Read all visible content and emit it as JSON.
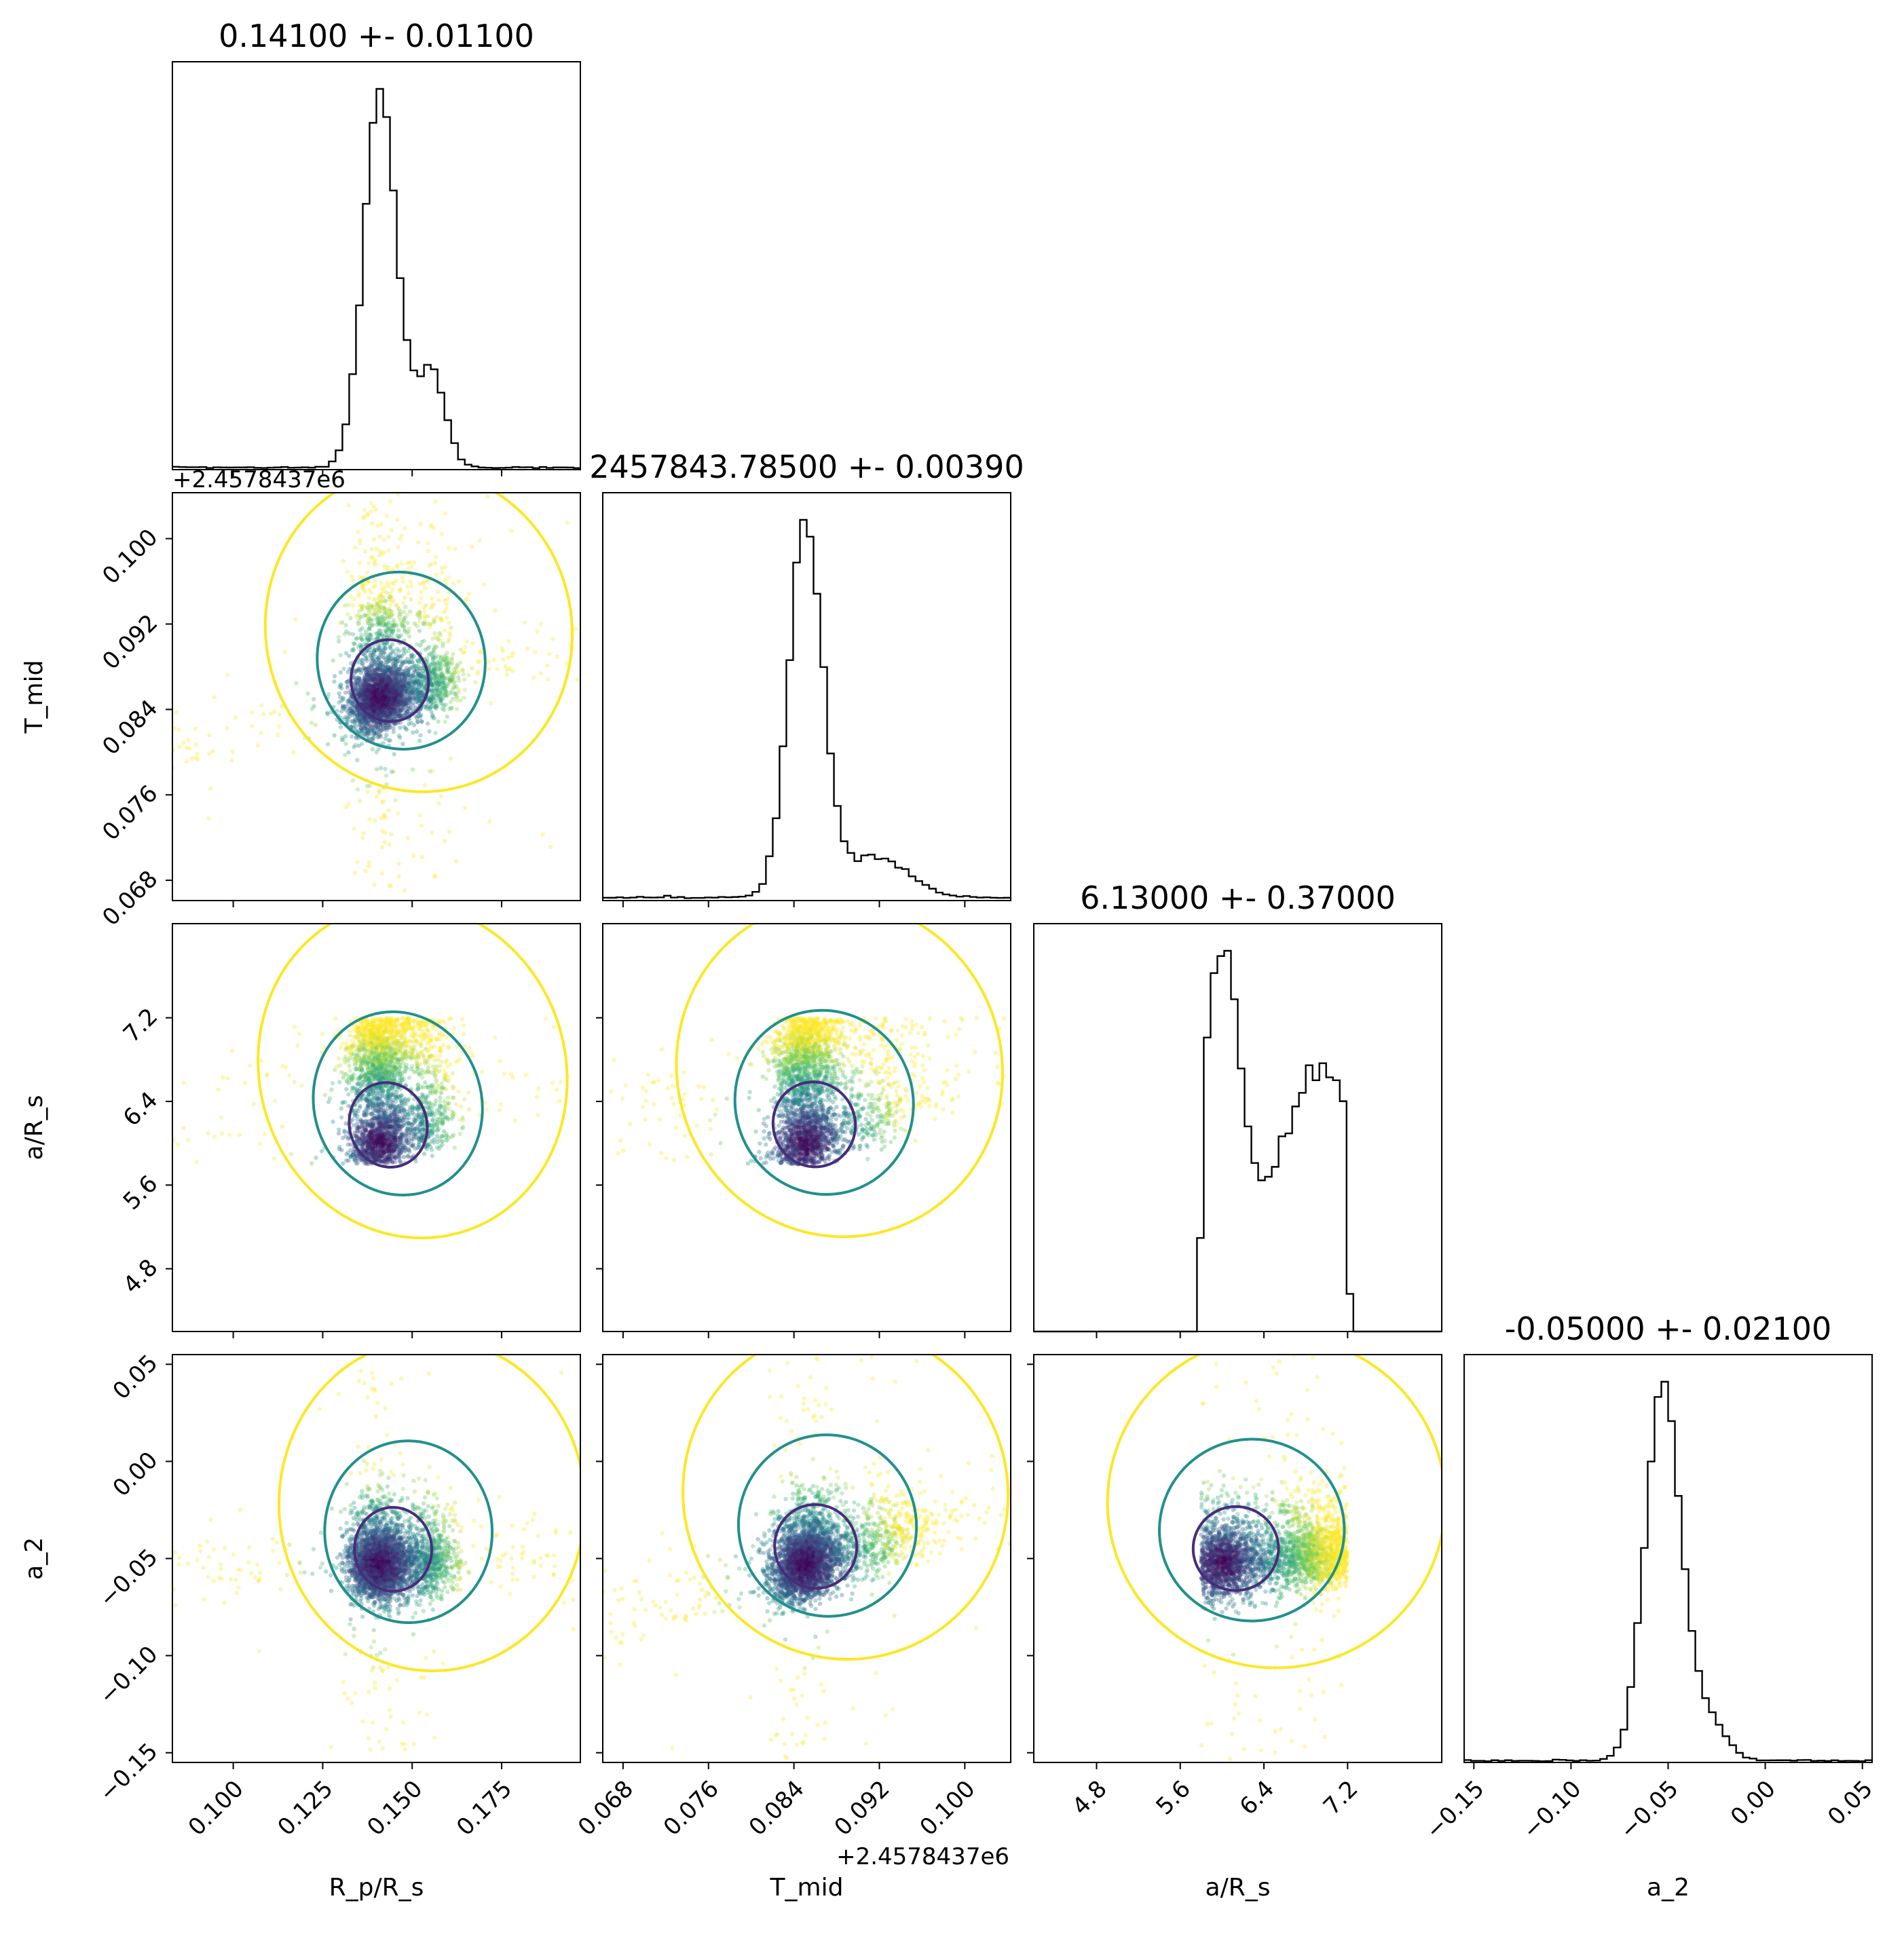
{
  "chart_data": {
    "type": "corner",
    "variables": [
      {
        "key": "rp",
        "label": "R_p/R_s",
        "title": "0.14100 +- 0.01100",
        "range": [
          0.083,
          0.197
        ],
        "ticks": [
          0.1,
          0.125,
          0.15,
          0.175
        ],
        "tick_labels": [
          "0.100",
          "0.125",
          "0.150",
          "0.175"
        ],
        "offset": "",
        "hist": {
          "bins": 60,
          "peak": 0.141,
          "width": 0.0045,
          "secondary": [
            [
              0.155,
              0.18,
              0.004
            ]
          ],
          "floor": 0.045,
          "floor_slope": 0.02,
          "sample_range": [
            0.083,
            0.197
          ]
        }
      },
      {
        "key": "tmid",
        "label": "T_mid",
        "title": "2457843.78500 +- 0.00390",
        "range": [
          0.0661,
          0.1043
        ],
        "ticks": [
          0.068,
          0.076,
          0.084,
          0.092,
          0.1
        ],
        "tick_labels": [
          "0.068",
          "0.076",
          "0.084",
          "0.092",
          "0.100"
        ],
        "offset": "+2.4578437e6",
        "hist": {
          "bins": 60,
          "peak": 0.0851,
          "width": 0.0016,
          "secondary": [
            [
              0.0915,
              0.16,
              0.003
            ]
          ],
          "floor": 0.06,
          "floor_slope": 0.03,
          "sample_range": [
            0.0661,
            0.1043
          ]
        }
      },
      {
        "key": "ars",
        "label": "a/R_s",
        "title": "6.13000 +- 0.37000",
        "range": [
          4.2,
          8.1
        ],
        "ticks": [
          4.8,
          5.6,
          6.4,
          7.2
        ],
        "tick_labels": [
          "4.8",
          "5.6",
          "6.4",
          "7.2"
        ],
        "offset": "",
        "hist": {
          "bins": 60,
          "peak": 6.0,
          "width": 0.17,
          "secondary": [
            [
              6.95,
              0.42,
              0.35
            ]
          ],
          "floor": 0.25,
          "floor_slope": 0.0,
          "sample_range": [
            5.8,
            7.2
          ]
        }
      },
      {
        "key": "a2",
        "label": "a_2",
        "title": "-0.05000 +- 0.02100",
        "range": [
          -0.155,
          0.055
        ],
        "ticks": [
          -0.15,
          -0.1,
          -0.05,
          0.0,
          0.05
        ],
        "tick_labels": [
          "−0.15",
          "−0.10",
          "−0.05",
          "0.00",
          "0.05"
        ],
        "offset": "",
        "hist": {
          "bins": 60,
          "peak": -0.053,
          "width": 0.009,
          "secondary": [
            [
              -0.032,
              0.12,
              0.01
            ]
          ],
          "floor": 0.04,
          "floor_slope": 0.02,
          "sample_range": [
            -0.155,
            0.055
          ]
        }
      }
    ],
    "scatter": {
      "cmap": "viridis",
      "points_per_panel": 3600
    },
    "contours": {
      "levels": [
        {
          "name": "inner",
          "color": "#472c7a"
        },
        {
          "name": "middle",
          "color": "#21908d"
        },
        {
          "name": "outer",
          "color": "#fde725"
        }
      ]
    },
    "colors": {
      "hist": "#000000",
      "point_dark": "#440154",
      "point_mid": "#21908d",
      "point_light": "#fde725"
    }
  }
}
